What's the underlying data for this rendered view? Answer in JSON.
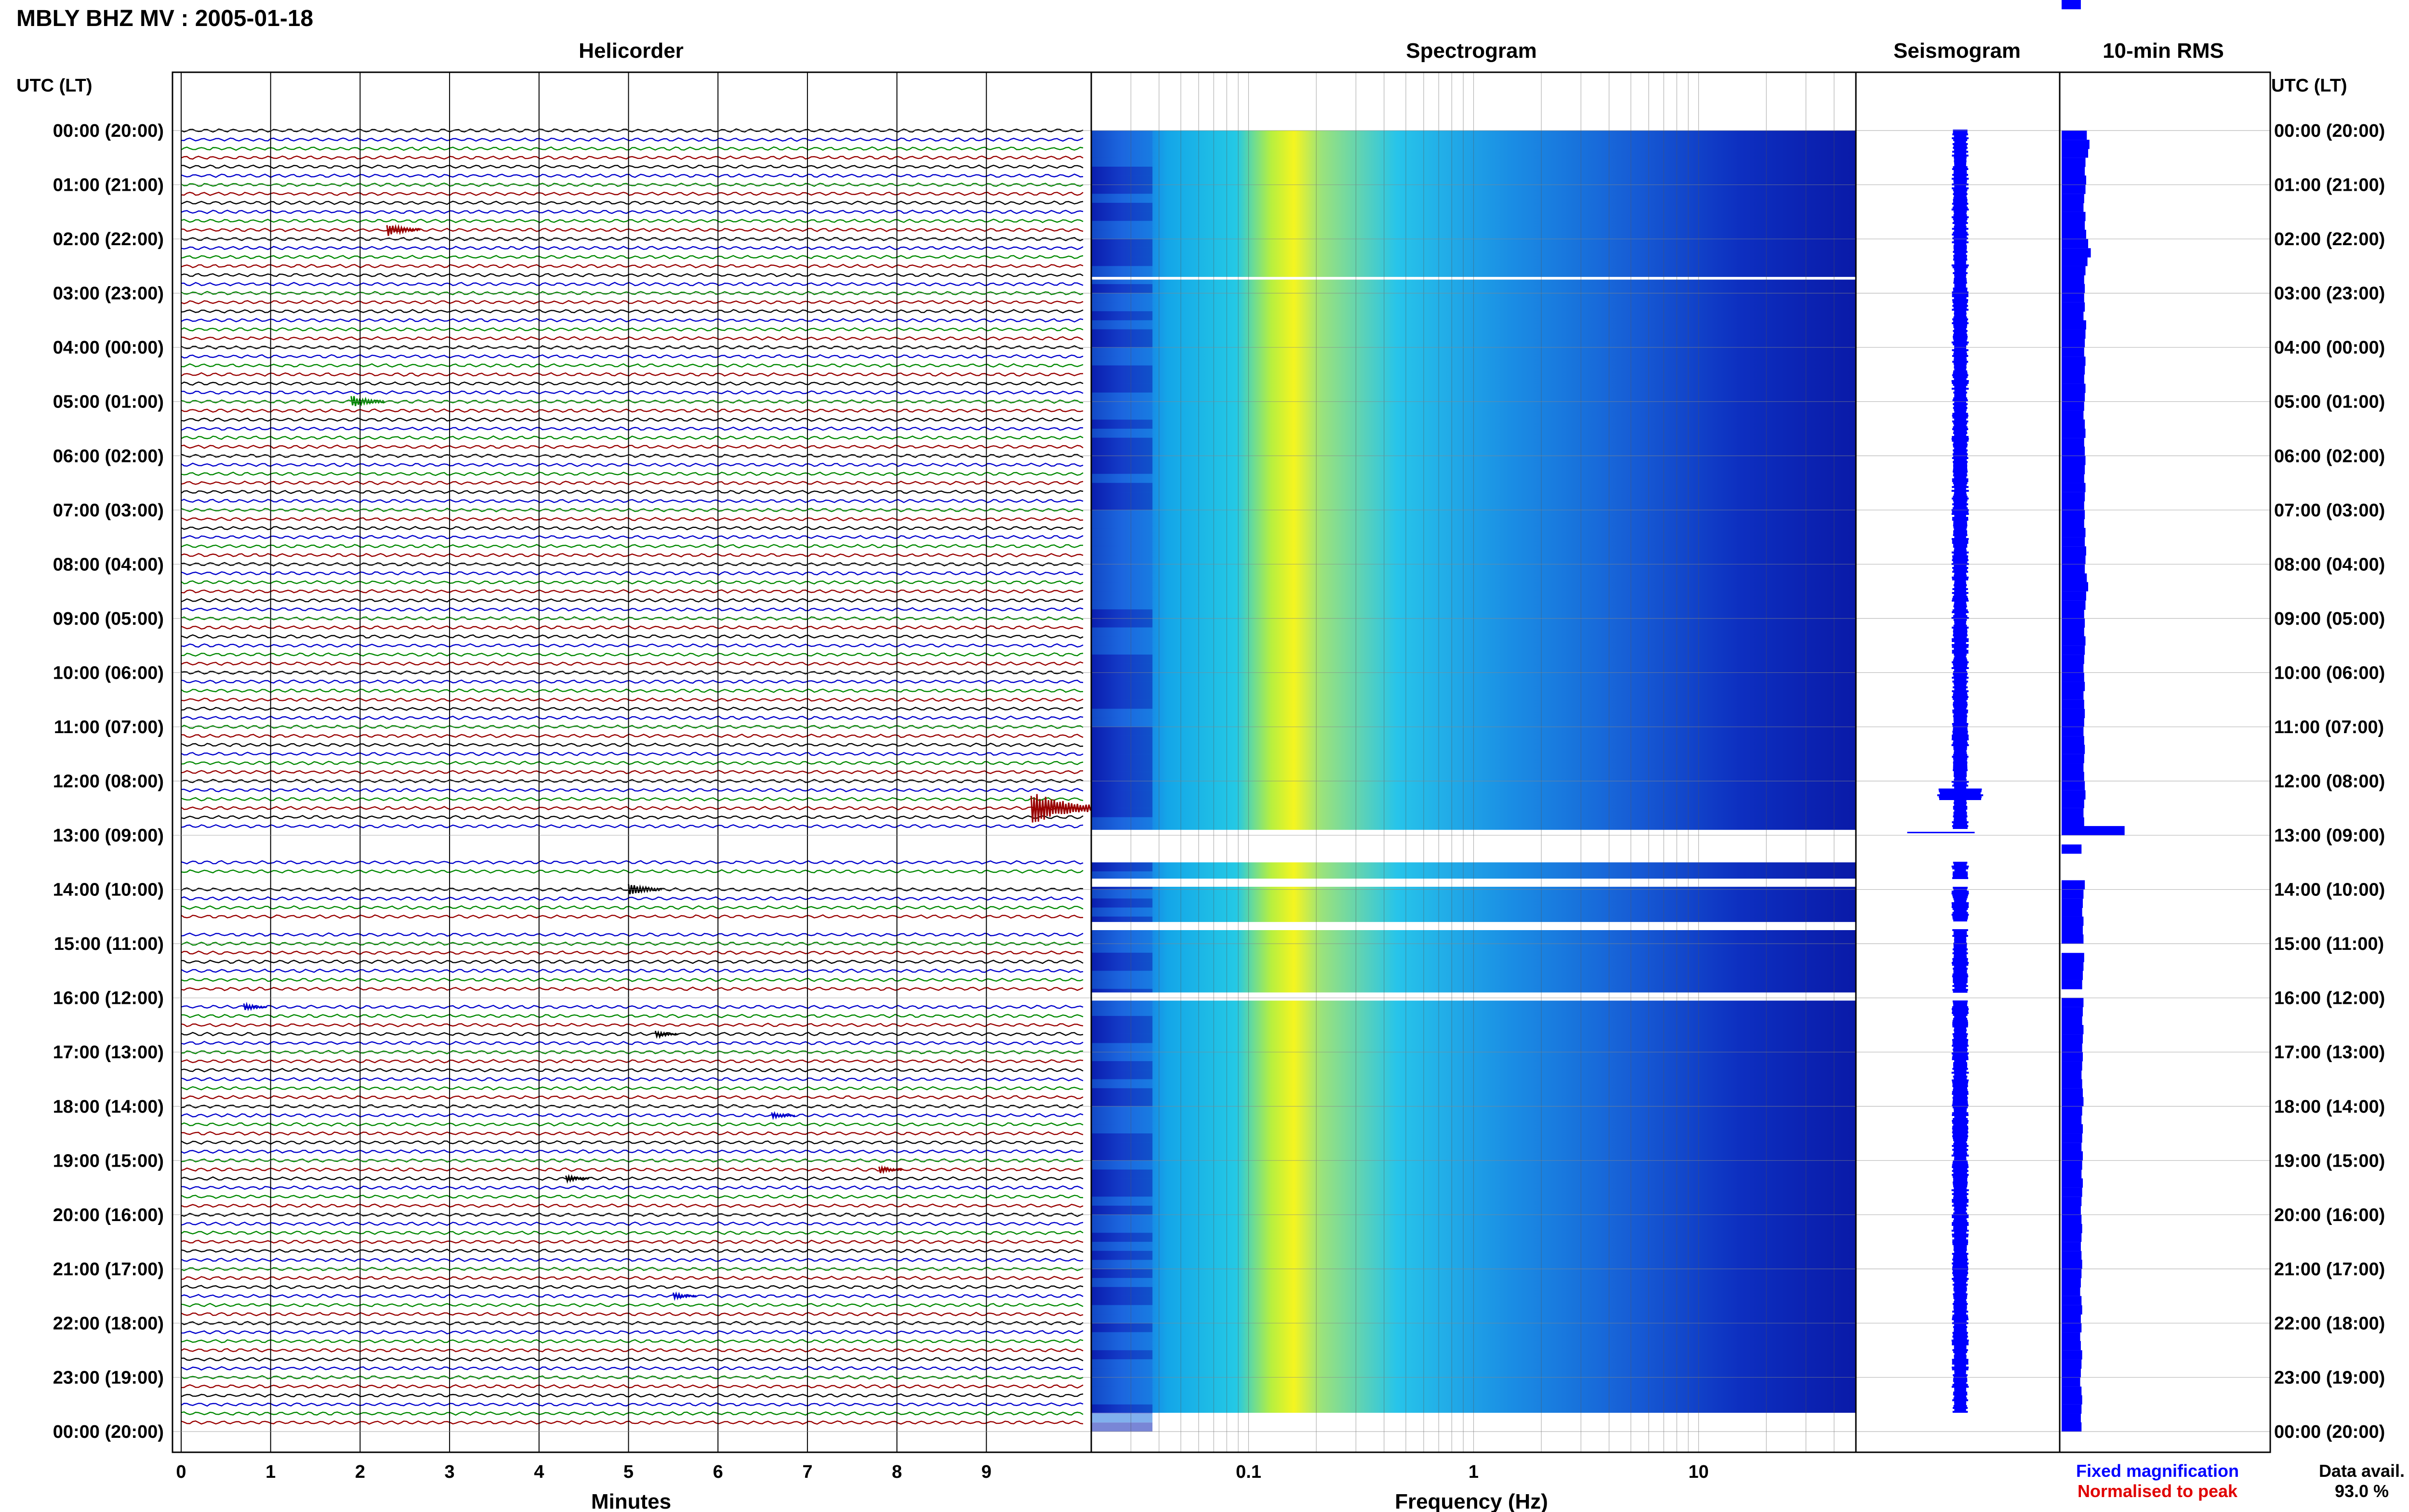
{
  "header": {
    "station_title": "MBLY BHZ MV : 2005-01-18",
    "utc_label_left": "UTC (LT)",
    "utc_label_right": "UTC (LT)"
  },
  "panels": {
    "helicorder": "Helicorder",
    "spectrogram": "Spectrogram",
    "seismogram": "Seismogram",
    "rms": "10-min RMS"
  },
  "time_labels": [
    "00:00 (20:00)",
    "01:00 (21:00)",
    "02:00 (22:00)",
    "03:00 (23:00)",
    "04:00 (00:00)",
    "05:00 (01:00)",
    "06:00 (02:00)",
    "07:00 (03:00)",
    "08:00 (04:00)",
    "09:00 (05:00)",
    "10:00 (06:00)",
    "11:00 (07:00)",
    "12:00 (08:00)",
    "13:00 (09:00)",
    "14:00 (10:00)",
    "15:00 (11:00)",
    "16:00 (12:00)",
    "17:00 (13:00)",
    "18:00 (14:00)",
    "19:00 (15:00)",
    "20:00 (16:00)",
    "21:00 (17:00)",
    "22:00 (18:00)",
    "23:00 (19:00)",
    "00:00 (20:00)"
  ],
  "footer": {
    "legend_fixed": "Fixed magnification",
    "legend_normalised": "Normalised to peak",
    "data_avail_label": "Data avail.",
    "data_avail_value": "93.0 %"
  },
  "colors": {
    "trace_cycle": [
      "#000000",
      "#0000cc",
      "#008800",
      "#990000"
    ],
    "seismogram": "#0000ff",
    "rms_bar": "#0000ff",
    "spectrogram_background": "#0a1aa8"
  },
  "chart_data": [
    {
      "type": "line",
      "name": "helicorder",
      "title": "Helicorder",
      "xlabel": "Minutes",
      "ylabel": "UTC (LT)",
      "xlim": [
        0,
        10
      ],
      "xticks": [
        0,
        1,
        2,
        3,
        4,
        5,
        6,
        7,
        8,
        9
      ],
      "minutes_per_line": 10,
      "lines_per_hour": 6,
      "hours": 24,
      "data_gaps_hours": [
        [
          12.9,
          13.5
        ],
        [
          13.8,
          13.95
        ],
        [
          14.6,
          14.75
        ],
        [
          15.9,
          16.05
        ]
      ],
      "events": [
        {
          "hour": 1.83,
          "minute": 2.3,
          "size": "medium"
        },
        {
          "hour": 5.0,
          "minute": 1.9,
          "size": "medium"
        },
        {
          "hour": 12.5,
          "minute": 9.5,
          "size": "large"
        },
        {
          "hour": 14.0,
          "minute": 5.0,
          "size": "medium"
        },
        {
          "hour": 16.17,
          "minute": 0.7,
          "size": "small"
        },
        {
          "hour": 16.67,
          "minute": 5.3,
          "size": "small"
        },
        {
          "hour": 18.17,
          "minute": 6.6,
          "size": "small"
        },
        {
          "hour": 19.17,
          "minute": 7.8,
          "size": "small"
        },
        {
          "hour": 19.33,
          "minute": 4.3,
          "size": "small"
        },
        {
          "hour": 21.5,
          "minute": 5.5,
          "size": "small"
        }
      ]
    },
    {
      "type": "heatmap",
      "name": "spectrogram",
      "title": "Spectrogram",
      "xlabel": "Frequency (Hz)",
      "x_scale": "log",
      "xlim": [
        0.02,
        50
      ],
      "xticks": [
        0.1,
        1,
        10
      ],
      "xticklabels": [
        "0.1",
        "1",
        "10"
      ],
      "peak_frequency_hz": 0.2,
      "data_gaps_hours": [
        [
          12.9,
          13.5
        ],
        [
          13.8,
          13.95
        ],
        [
          14.6,
          14.75
        ],
        [
          15.9,
          16.05
        ],
        [
          2.7,
          2.75
        ]
      ]
    },
    {
      "type": "line",
      "name": "seismogram",
      "title": "Seismogram",
      "burst_hours": [
        12.15,
        12.35
      ]
    },
    {
      "type": "bar",
      "name": "rms",
      "title": "10-min RMS",
      "categories_hours": [
        0,
        0.17,
        0.33,
        0.5,
        0.67,
        0.83,
        1,
        1.17,
        1.33,
        1.5,
        1.67,
        1.83,
        2,
        2.17,
        2.33,
        2.5,
        2.67,
        2.83,
        3,
        3.17,
        3.33,
        3.5,
        3.67,
        3.83,
        4,
        4.17,
        4.33,
        4.5,
        4.67,
        4.83,
        5,
        5.17,
        5.33,
        5.5,
        5.67,
        5.83,
        6,
        6.17,
        6.33,
        6.5,
        6.67,
        6.83,
        7,
        7.17,
        7.33,
        7.5,
        7.67,
        7.83,
        8,
        8.17,
        8.33,
        8.5,
        8.67,
        8.83,
        9,
        9.17,
        9.33,
        9.5,
        9.67,
        9.83,
        10,
        10.17,
        10.33,
        10.5,
        10.67,
        10.83,
        11,
        11.17,
        11.33,
        11.5,
        11.67,
        11.83,
        12,
        12.17,
        12.33,
        12.5,
        12.67,
        12.83,
        13,
        13.17,
        13.33,
        13.5,
        13.67,
        13.83,
        14,
        14.17,
        14.33,
        14.5,
        14.67,
        14.83,
        15,
        15.17,
        15.33,
        15.5,
        15.67,
        15.83,
        16,
        16.17,
        16.33,
        16.5,
        16.67,
        16.83,
        17,
        17.17,
        17.33,
        17.5,
        17.67,
        17.83,
        18,
        18.17,
        18.33,
        18.5,
        18.67,
        18.83,
        19,
        19.17,
        19.33,
        19.5,
        19.67,
        19.83,
        20,
        20.17,
        20.33,
        20.5,
        20.67,
        20.83,
        21,
        21.17,
        21.33,
        21.5,
        21.67,
        21.83,
        22,
        22.17,
        22.33,
        22.5,
        22.67,
        22.83,
        23,
        23.17,
        23.33,
        23.5,
        23.67,
        23.83
      ],
      "values": [
        0.38,
        0.42,
        0.4,
        0.36,
        0.35,
        0.37,
        0.36,
        0.34,
        0.33,
        0.36,
        0.35,
        0.37,
        0.4,
        0.44,
        0.39,
        0.36,
        0.34,
        0.35,
        0.34,
        0.35,
        0.33,
        0.37,
        0.36,
        0.35,
        0.34,
        0.36,
        0.35,
        0.34,
        0.36,
        0.35,
        0.34,
        0.33,
        0.35,
        0.36,
        0.34,
        0.35,
        0.36,
        0.35,
        0.34,
        0.36,
        0.35,
        0.34,
        0.35,
        0.34,
        0.36,
        0.35,
        0.37,
        0.36,
        0.35,
        0.38,
        0.4,
        0.37,
        0.36,
        0.34,
        0.35,
        0.34,
        0.36,
        0.35,
        0.34,
        0.33,
        0.34,
        0.35,
        0.33,
        0.34,
        0.35,
        0.34,
        0.33,
        0.34,
        0.35,
        0.34,
        0.33,
        0.34,
        0.35,
        0.36,
        0.34,
        0.33,
        0.34,
        0.95,
        null,
        0.3,
        null,
        null,
        null,
        0.35,
        0.33,
        0.32,
        0.31,
        0.33,
        0.32,
        0.33,
        null,
        0.34,
        0.33,
        0.32,
        0.31,
        null,
        0.33,
        0.32,
        0.31,
        0.33,
        0.32,
        0.31,
        0.32,
        0.31,
        0.3,
        0.31,
        0.32,
        0.33,
        0.31,
        0.3,
        0.32,
        0.31,
        0.3,
        0.32,
        0.31,
        0.3,
        0.32,
        0.31,
        0.3,
        0.29,
        0.3,
        0.31,
        0.3,
        0.29,
        0.3,
        0.31,
        0.3,
        0.29,
        0.28,
        0.3,
        0.31,
        0.29,
        0.3,
        0.28,
        0.29,
        0.31,
        0.3,
        0.29,
        0.28,
        0.3,
        0.31,
        0.3,
        0.29,
        0.3,
        0.29
      ],
      "xlim": [
        0,
        1
      ]
    }
  ]
}
